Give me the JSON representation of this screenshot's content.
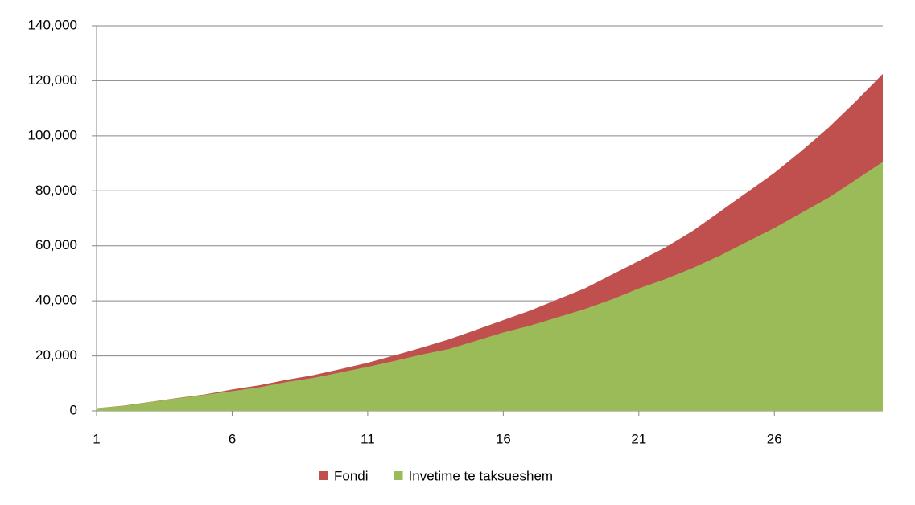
{
  "chart_data": {
    "type": "area",
    "x": [
      1,
      2,
      3,
      4,
      5,
      6,
      7,
      8,
      9,
      10,
      11,
      12,
      13,
      14,
      15,
      16,
      17,
      18,
      19,
      20,
      21,
      22,
      23,
      24,
      25,
      26,
      27,
      28,
      29,
      30
    ],
    "xlim": [
      1,
      30
    ],
    "xticks": [
      1,
      6,
      11,
      16,
      21,
      26
    ],
    "ylim": [
      0,
      140000
    ],
    "yticks": [
      0,
      {
        "value": 20000,
        "label": "20,000"
      },
      {
        "value": 40000,
        "label": "40,000"
      },
      {
        "value": 60000,
        "label": "60,000"
      },
      {
        "value": 80000,
        "label": "80,000"
      },
      {
        "value": 100000,
        "label": "100,000"
      },
      {
        "value": 120000,
        "label": "120,000"
      },
      {
        "value": 140000,
        "label": "140,000"
      }
    ],
    "grid": true,
    "legend": "bottom",
    "series": [
      {
        "name": "Fondi",
        "color": "#c0504d",
        "values": [
          1000,
          1900,
          3300,
          4700,
          6000,
          7800,
          9300,
          11300,
          13000,
          15200,
          17500,
          20200,
          23000,
          26000,
          29500,
          33000,
          36500,
          40500,
          44500,
          49500,
          54500,
          59500,
          65500,
          72500,
          79500,
          86500,
          94500,
          103000,
          112500,
          122500
        ]
      },
      {
        "name": "Invetime te taksueshem",
        "color": "#9bbb59",
        "values": [
          1000,
          1800,
          3200,
          4600,
          5800,
          7200,
          8600,
          10500,
          12000,
          14000,
          16000,
          18200,
          20500,
          22500,
          25500,
          28500,
          31000,
          34000,
          37000,
          40500,
          44500,
          48000,
          52000,
          56500,
          61500,
          66500,
          72000,
          77500,
          84000,
          90500
        ]
      }
    ]
  }
}
